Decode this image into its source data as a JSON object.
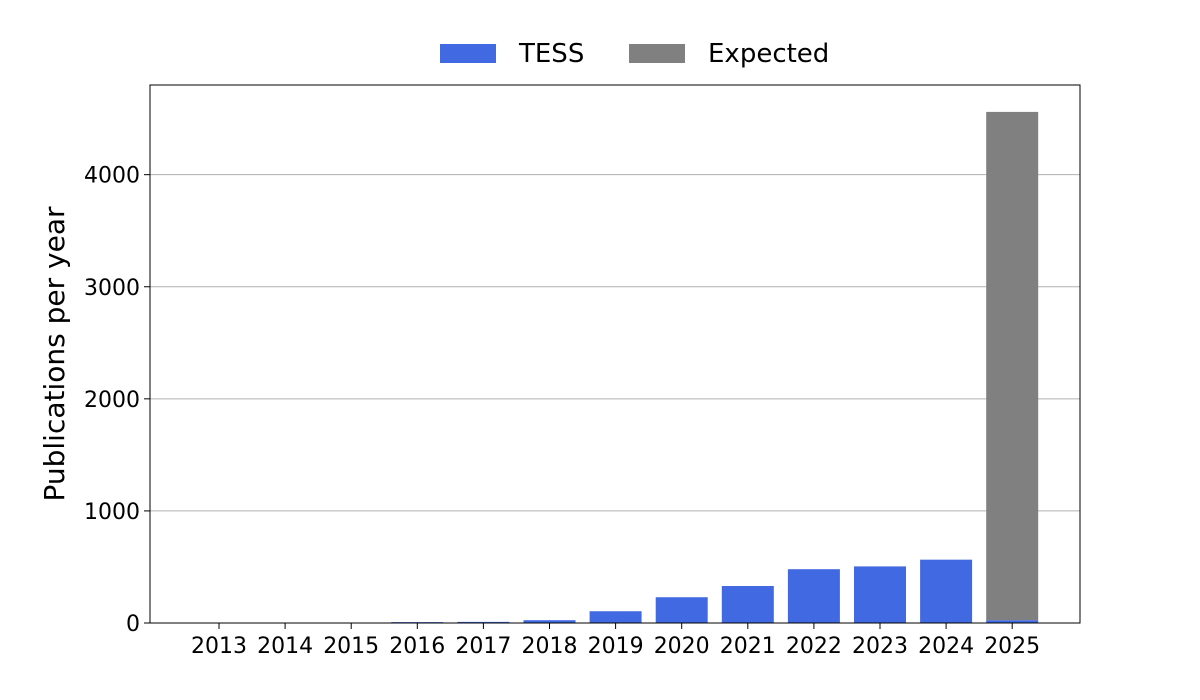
{
  "chart_data": {
    "type": "bar",
    "stacked": true,
    "categories": [
      "2013",
      "2014",
      "2015",
      "2016",
      "2017",
      "2018",
      "2019",
      "2020",
      "2021",
      "2022",
      "2023",
      "2024",
      "2025"
    ],
    "series": [
      {
        "name": "TESS",
        "color": "#4169e1",
        "values": [
          0,
          0,
          2,
          8,
          10,
          25,
          105,
          230,
          330,
          480,
          505,
          565,
          25
        ]
      },
      {
        "name": "Expected",
        "color": "#808080",
        "values": [
          0,
          0,
          0,
          0,
          0,
          0,
          0,
          0,
          0,
          0,
          0,
          0,
          4535
        ]
      }
    ],
    "xlabel": "",
    "ylabel": "Publications per year",
    "ylim": [
      0,
      4800
    ],
    "yticks": [
      0,
      1000,
      2000,
      3000,
      4000
    ],
    "grid": "y",
    "legend": "top-center"
  }
}
